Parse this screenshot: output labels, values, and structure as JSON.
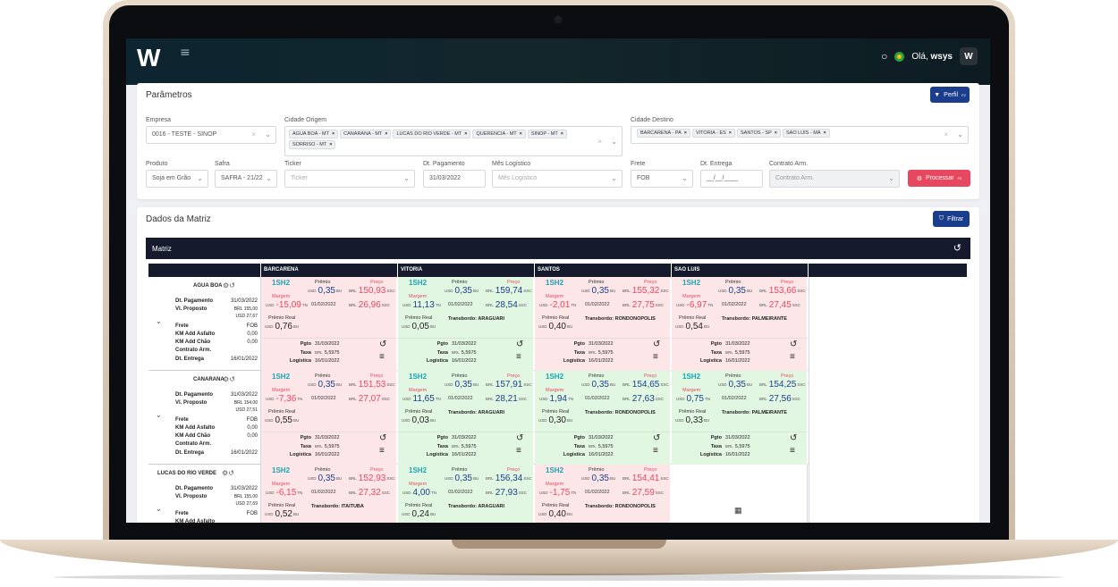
{
  "topbar": {
    "logo": "W",
    "greeting_prefix": "Olá, ",
    "user": "wsys",
    "avatar": "W"
  },
  "parametros": {
    "title": "Parâmetros",
    "perfil_label": "Perfil",
    "perfil_key": "F2",
    "empresa": {
      "label": "Empresa",
      "value": "0016 - TESTE - SINOP"
    },
    "cidade_origem": {
      "label": "Cidade Origem",
      "chips": [
        "AGUA BOA - MT",
        "CANARANA - MT",
        "LUCAS DO RIO VERDE - MT",
        "QUERENCIA - MT",
        "SINOP - MT",
        "SORRISO - MT"
      ]
    },
    "cidade_destino": {
      "label": "Cidade Destino",
      "chips": [
        "BARCARENA - PA",
        "VITORIA - ES",
        "SANTOS - SP",
        "SAO LUIS - MA"
      ]
    },
    "produto": {
      "label": "Produto",
      "value": "Soja em Grão"
    },
    "safra": {
      "label": "Safra",
      "value": "SAFRA - 21/22"
    },
    "ticker": {
      "label": "Ticker",
      "placeholder": "Ticker"
    },
    "dt_pagamento": {
      "label": "Dt. Pagamento",
      "value": "31/03/2022"
    },
    "mes_logistico": {
      "label": "Mês Logístico",
      "placeholder": "Mês Logístico"
    },
    "frete": {
      "label": "Frete",
      "value": "FOB"
    },
    "dt_entrega": {
      "label": "Dt. Entrega",
      "value": "__/__/____"
    },
    "contrato_arm": {
      "label": "Contrato Arm.",
      "placeholder": "Contrato Arm."
    },
    "processar_label": "Processar",
    "processar_key": "F8"
  },
  "dados": {
    "title": "Dados da Matriz",
    "filtrar_label": "Filtrar",
    "matriz_label": "Matriz",
    "columns": [
      "BARCARENA",
      "VITORIA",
      "SANTOS",
      "SAO LUIS"
    ],
    "labels": {
      "premio": "Prêmio",
      "preco": "Preço",
      "margem": "Margem",
      "premio_real": "Prêmio Real",
      "pgto": "Pgto",
      "taxa": "Taxa",
      "logistica": "Logística",
      "transbordo": "Transbordo:",
      "usd": "USD",
      "brl": "BRL",
      "bu": "BU",
      "tn": "TN",
      "sc": "SSC"
    },
    "rows": [
      {
        "name": "AGUA BOA",
        "dt_pagamento": "31/03/2022",
        "vl_proposto_brl": "155,00",
        "vl_proposto_usd": "27,67",
        "frete": "FOB",
        "km_asfalto": "0,00",
        "km_chao": "0,00",
        "contrato": "",
        "dt_entrega": "16/01/2022",
        "cells": [
          {
            "color": "red",
            "ticker": "1SH2",
            "premio": "0,35",
            "preco": "150,93",
            "margem": "-15,09",
            "margem_date": "01/02/2022",
            "preco2": "26,96",
            "premio_real": "0,76",
            "transbordo": "",
            "pgto": "31/03/2022",
            "taxa": "5,5975",
            "logistica": "16/01/2022"
          },
          {
            "color": "green",
            "ticker": "1SH2",
            "premio": "0,35",
            "preco": "159,74",
            "margem": "11,13",
            "margem_date": "01/02/2022",
            "preco2": "28,54",
            "premio_real": "0,05",
            "transbordo": "ARAGUARI",
            "pgto": "31/03/2022",
            "taxa": "5,5975",
            "logistica": "16/01/2022"
          },
          {
            "color": "red",
            "ticker": "1SH2",
            "premio": "0,35",
            "preco": "155,32",
            "margem": "-2,01",
            "margem_date": "01/02/2022",
            "preco2": "27,75",
            "premio_real": "0,40",
            "transbordo": "RONDONOPOLIS",
            "pgto": "31/03/2022",
            "taxa": "5,5975",
            "logistica": "16/01/2022"
          },
          {
            "color": "red",
            "ticker": "1SH2",
            "premio": "0,35",
            "preco": "153,66",
            "margem": "-6,97",
            "margem_date": "01/02/2022",
            "preco2": "27,45",
            "premio_real": "0,54",
            "transbordo": "PALMEIRANTE",
            "pgto": "31/03/2022",
            "taxa": "5,5975",
            "logistica": "16/01/2022"
          }
        ]
      },
      {
        "name": "CANARANA",
        "dt_pagamento": "31/03/2022",
        "vl_proposto_brl": "154,00",
        "vl_proposto_usd": "27,51",
        "frete": "FOB",
        "km_asfalto": "0,00",
        "km_chao": "0,00",
        "contrato": "",
        "dt_entrega": "16/01/2022",
        "cells": [
          {
            "color": "red",
            "ticker": "1SH2",
            "premio": "0,35",
            "preco": "151,53",
            "margem": "-7,36",
            "margem_date": "01/02/2022",
            "preco2": "27,07",
            "premio_real": "0,55",
            "transbordo": "",
            "pgto": "31/03/2022",
            "taxa": "5,5975",
            "logistica": "16/01/2022"
          },
          {
            "color": "green",
            "ticker": "1SH2",
            "premio": "0,35",
            "preco": "157,91",
            "margem": "11,65",
            "margem_date": "01/02/2022",
            "preco2": "28,21",
            "premio_real": "0,03",
            "transbordo": "ARAGUARI",
            "pgto": "31/03/2022",
            "taxa": "5,5975",
            "logistica": "16/01/2022"
          },
          {
            "color": "green",
            "ticker": "1SH2",
            "premio": "0,35",
            "preco": "154,65",
            "margem": "1,94",
            "margem_date": "01/02/2022",
            "preco2": "27,63",
            "premio_real": "0,30",
            "transbordo": "RONDONOPOLIS",
            "pgto": "31/03/2022",
            "taxa": "5,5975",
            "logistica": "16/01/2022"
          },
          {
            "color": "green",
            "ticker": "1SH2",
            "premio": "0,35",
            "preco": "154,25",
            "margem": "0,75",
            "margem_date": "01/02/2022",
            "preco2": "27,56",
            "premio_real": "0,33",
            "transbordo": "PALMEIRANTE",
            "pgto": "31/03/2022",
            "taxa": "5,5975",
            "logistica": "16/01/2022"
          }
        ]
      },
      {
        "name": "LUCAS DO RIO VERDE",
        "dt_pagamento": "31/03/2022",
        "vl_proposto_brl": "155,00",
        "vl_proposto_usd": "27,69",
        "frete": "FOB",
        "km_asfalto": "",
        "km_chao": "",
        "contrato": "",
        "dt_entrega": "",
        "cells": [
          {
            "color": "red",
            "ticker": "1SH2",
            "premio": "0,35",
            "preco": "152,93",
            "margem": "-6,15",
            "margem_date": "01/02/2022",
            "preco2": "27,32",
            "premio_real": "0,52",
            "transbordo": "ITAITUBA"
          },
          {
            "color": "green",
            "ticker": "1SH2",
            "premio": "0,35",
            "preco": "156,34",
            "margem": "4,00",
            "margem_date": "01/02/2022",
            "preco2": "27,93",
            "premio_real": "0,24",
            "transbordo": "ARAGUARI"
          },
          {
            "color": "red",
            "ticker": "1SH2",
            "premio": "0,35",
            "preco": "154,41",
            "margem": "-1,75",
            "margem_date": "01/02/2022",
            "preco2": "27,59",
            "premio_real": "0,40",
            "transbordo": "RONDONOPOLIS"
          },
          {
            "color": "empty"
          }
        ]
      }
    ],
    "row_labels": {
      "dt_pagamento": "Dt. Pagamento",
      "vl_proposto": "Vl. Proposto",
      "frete": "Frete",
      "km_asfalto": "KM Add Asfalto",
      "km_chao": "KM Add Chão",
      "contrato": "Contrato Arm.",
      "dt_entrega": "Dt. Entrega"
    }
  }
}
